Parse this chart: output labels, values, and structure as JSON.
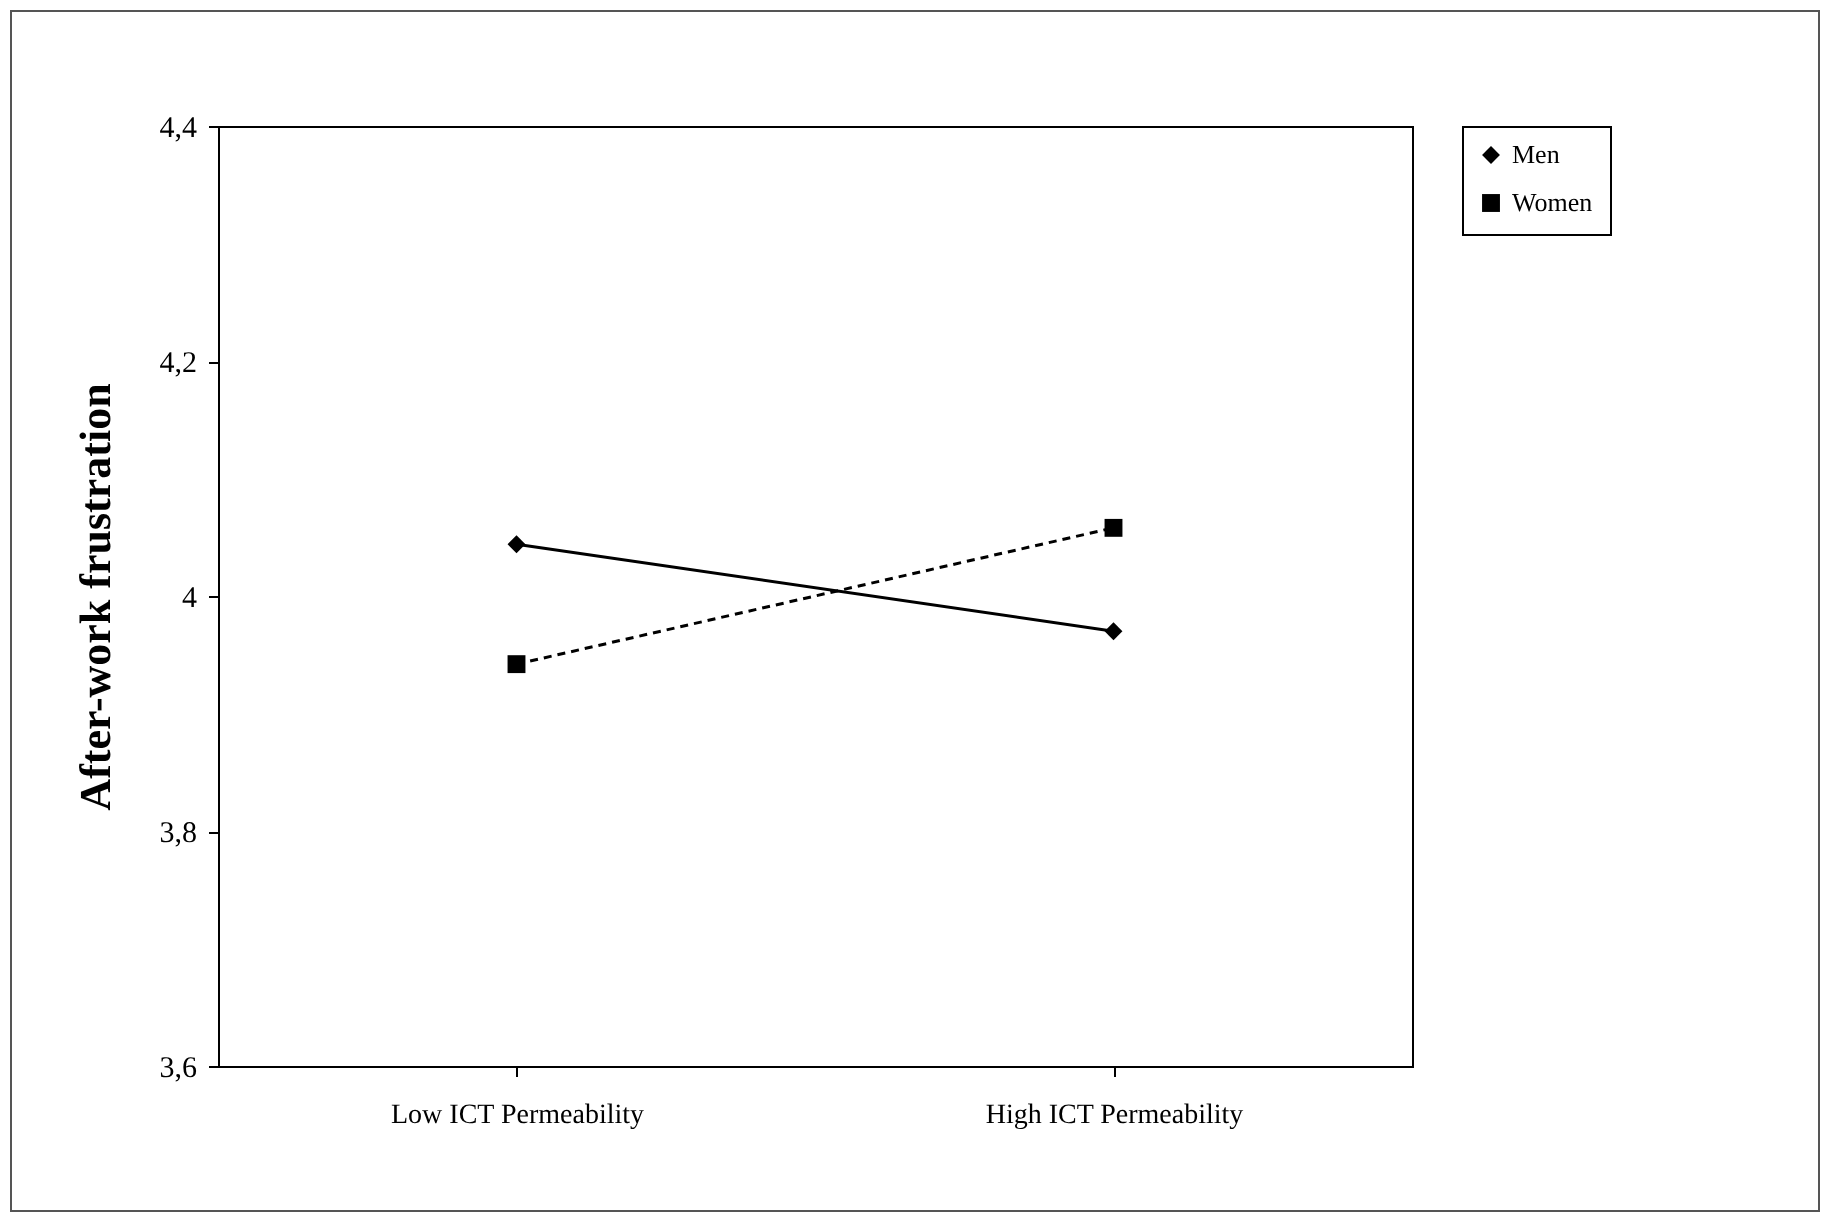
{
  "chart_data": {
    "type": "line",
    "ylabel": "After-work frustration",
    "categories": [
      "Low ICT Permeability",
      "High ICT Permeability"
    ],
    "series": [
      {
        "name": "Men",
        "color": "#000000",
        "values": [
          4.044,
          3.97
        ],
        "marker": "diamond",
        "line_style": "solid"
      },
      {
        "name": "Women",
        "color": "#000000",
        "values": [
          3.942,
          4.058
        ],
        "marker": "square",
        "line_style": "dashed"
      }
    ],
    "ylim": [
      3.6,
      4.4
    ],
    "yticks": [
      {
        "value": 3.6,
        "label": "3,6"
      },
      {
        "value": 3.8,
        "label": "3,8"
      },
      {
        "value": 4,
        "label": "4"
      },
      {
        "value": 4.2,
        "label": "4,2"
      },
      {
        "value": 4.4,
        "label": "4,4"
      }
    ],
    "grid": false,
    "legend": "right"
  }
}
